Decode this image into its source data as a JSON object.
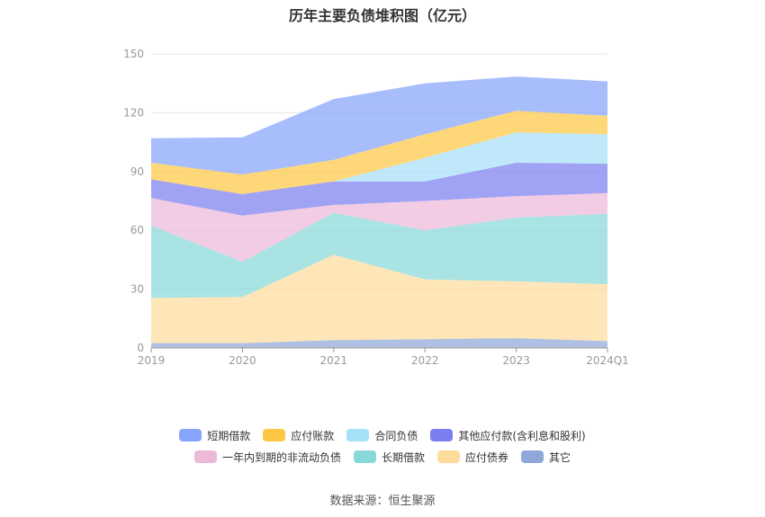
{
  "chart_data": {
    "type": "area",
    "stacked": true,
    "title": "历年主要负债堆积图（亿元）",
    "categories": [
      "2019",
      "2020",
      "2021",
      "2022",
      "2023",
      "2024Q1"
    ],
    "ylim": [
      0,
      150
    ],
    "yticks": [
      "0",
      "30",
      "60",
      "90",
      "120",
      "150"
    ],
    "grid": true,
    "legend_position": "bottom",
    "series": [
      {
        "name": "其它",
        "color": "#8FA8D8",
        "values": [
          2.5,
          2.5,
          4.0,
          4.5,
          5.0,
          3.5
        ]
      },
      {
        "name": "应付债券",
        "color": "#FDDC9C",
        "values": [
          23.0,
          23.5,
          43.5,
          30.5,
          29.0,
          29.0
        ]
      },
      {
        "name": "长期借款",
        "color": "#88D8D8",
        "values": [
          37.0,
          18.0,
          21.5,
          25.0,
          32.5,
          36.0
        ]
      },
      {
        "name": "一年内到期的非流动负债",
        "color": "#EDB9D9",
        "values": [
          14.0,
          23.5,
          4.0,
          15.0,
          11.0,
          10.5
        ]
      },
      {
        "name": "其他应付款(含利息和股利)",
        "color": "#7B7EF0",
        "values": [
          9.5,
          11.0,
          12.0,
          10.0,
          17.0,
          15.0
        ]
      },
      {
        "name": "合同负债",
        "color": "#A6E1F9",
        "values": [
          0.0,
          0.0,
          0.0,
          12.0,
          15.5,
          15.0
        ]
      },
      {
        "name": "应付账款",
        "color": "#FDC744",
        "values": [
          8.5,
          10.0,
          11.0,
          12.0,
          11.0,
          9.5
        ]
      },
      {
        "name": "短期借款",
        "color": "#86A4FB",
        "values": [
          12.5,
          19.0,
          31.0,
          26.0,
          17.5,
          17.5
        ]
      }
    ]
  },
  "legend_rows": [
    [
      {
        "name": "短期借款",
        "color": "#86A4FB"
      },
      {
        "name": "应付账款",
        "color": "#FDC744"
      },
      {
        "name": "合同负债",
        "color": "#A6E1F9"
      },
      {
        "name": "其他应付款(含利息和股利)",
        "color": "#7B7EF0"
      }
    ],
    [
      {
        "name": "一年内到期的非流动负债",
        "color": "#EDB9D9"
      },
      {
        "name": "长期借款",
        "color": "#88D8D8"
      },
      {
        "name": "应付债券",
        "color": "#FDDC9C"
      },
      {
        "name": "其它",
        "color": "#8FA8D8"
      }
    ]
  ],
  "source_note": "数据来源：恒生聚源"
}
